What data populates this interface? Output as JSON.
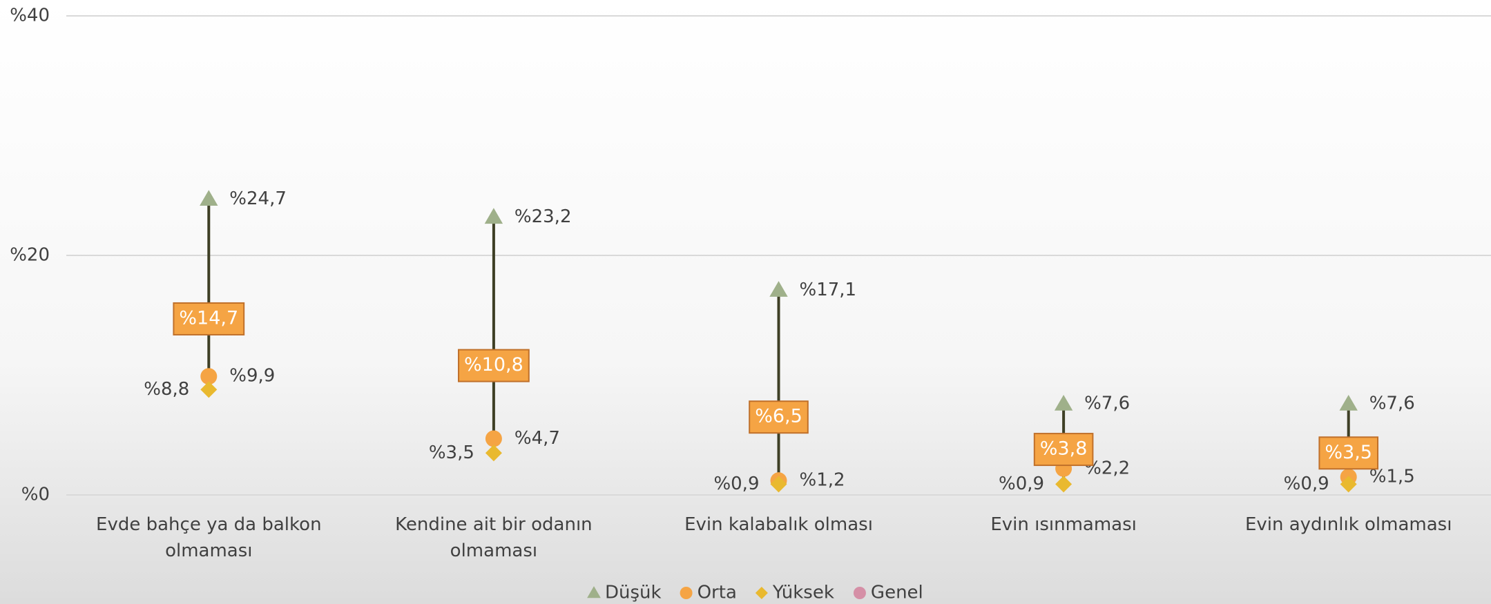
{
  "chart_data": {
    "type": "dot",
    "categories": [
      "Evde bahçe ya da balkon olmaması",
      "Kendine ait bir odanın olmaması",
      "Evin kalabalık olması",
      "Evin ısınmaması",
      "Evin aydınlık olmaması"
    ],
    "series": [
      {
        "name": "Düşük",
        "color": "#9fb08a",
        "marker": "triangle",
        "values": [
          24.7,
          23.2,
          17.1,
          7.6,
          7.6
        ],
        "value_labels": [
          "%24,7",
          "%23,2",
          "%17,1",
          "%7,6",
          "%7,6"
        ]
      },
      {
        "name": "Orta",
        "color": "#f5a444",
        "marker": "circle",
        "values": [
          9.9,
          4.7,
          1.2,
          2.2,
          1.5
        ],
        "value_labels": [
          "%9,9",
          "%4,7",
          "%1,2",
          "%2,2",
          "%1,5"
        ]
      },
      {
        "name": "Yüksek",
        "color": "#e9b92f",
        "marker": "diamond",
        "values": [
          8.8,
          3.5,
          0.9,
          0.9,
          0.9
        ],
        "value_labels": [
          "%8,8",
          "%3,5",
          "%0,9",
          "%0,9",
          "%0,9"
        ]
      },
      {
        "name": "Genel",
        "color": "#d58fa6",
        "marker": "box",
        "values": [
          14.7,
          10.8,
          6.5,
          3.8,
          3.5
        ],
        "value_labels": [
          "%14,7",
          "%10,8",
          "%6,5",
          "%3,8",
          "%3,5"
        ]
      }
    ],
    "ylim": [
      0,
      40
    ],
    "yticks": [
      {
        "value": 0,
        "label": "%0"
      },
      {
        "value": 20,
        "label": "%20"
      },
      {
        "value": 40,
        "label": "%40"
      }
    ],
    "grid": true,
    "legend": "bottom"
  }
}
